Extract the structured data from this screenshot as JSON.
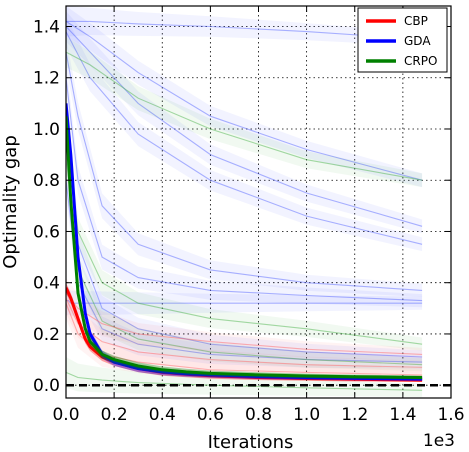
{
  "chart_data": {
    "type": "line",
    "xlabel": "Iterations",
    "ylabel": "Optimality gap",
    "x_multiplier_label": "1e3",
    "xlim": [
      0,
      1.6
    ],
    "ylim": [
      -0.05,
      1.48
    ],
    "x_ticks": [
      0.0,
      0.2,
      0.4,
      0.6,
      0.8,
      1.0,
      1.2,
      1.4,
      1.6
    ],
    "x_tick_labels": [
      "0.0",
      "0.2",
      "0.4",
      "0.6",
      "0.8",
      "1.0",
      "1.2",
      "1.4",
      "1.6"
    ],
    "y_ticks": [
      0.0,
      0.2,
      0.4,
      0.6,
      0.8,
      1.0,
      1.2,
      1.4
    ],
    "y_tick_labels": [
      "0.0",
      "0.2",
      "0.4",
      "0.6",
      "0.8",
      "1.0",
      "1.2",
      "1.4"
    ],
    "grid": true,
    "legend_position": "top-right",
    "reference_line": {
      "y": 0.0,
      "style": "dashed",
      "color": "#000000"
    },
    "colors": {
      "CBP": "#ff0000",
      "GDA": "#0000ff",
      "CRPO": "#008000"
    },
    "series": [
      {
        "name": "CBP",
        "x": [
          0,
          0.02,
          0.05,
          0.08,
          0.1,
          0.15,
          0.2,
          0.3,
          0.4,
          0.5,
          0.6,
          0.8,
          1.0,
          1.2,
          1.48
        ],
        "values": [
          0.38,
          0.34,
          0.26,
          0.18,
          0.15,
          0.11,
          0.09,
          0.065,
          0.05,
          0.043,
          0.037,
          0.03,
          0.026,
          0.023,
          0.02
        ]
      },
      {
        "name": "GDA",
        "x": [
          0,
          0.02,
          0.05,
          0.08,
          0.1,
          0.15,
          0.2,
          0.3,
          0.4,
          0.5,
          0.6,
          0.8,
          1.0,
          1.2,
          1.48
        ],
        "values": [
          1.1,
          0.9,
          0.5,
          0.28,
          0.2,
          0.12,
          0.09,
          0.065,
          0.052,
          0.045,
          0.04,
          0.034,
          0.03,
          0.027,
          0.024
        ]
      },
      {
        "name": "CRPO",
        "x": [
          0,
          0.02,
          0.05,
          0.08,
          0.1,
          0.15,
          0.2,
          0.3,
          0.4,
          0.5,
          0.6,
          0.8,
          1.0,
          1.2,
          1.48
        ],
        "values": [
          1.05,
          0.72,
          0.36,
          0.22,
          0.17,
          0.12,
          0.1,
          0.075,
          0.06,
          0.052,
          0.046,
          0.04,
          0.036,
          0.033,
          0.03
        ]
      }
    ],
    "background_runs": [
      {
        "color": "blue",
        "x": [
          0,
          0.1,
          0.3,
          0.6,
          1.0,
          1.48
        ],
        "values": [
          1.42,
          1.42,
          1.41,
          1.4,
          1.38,
          1.35
        ]
      },
      {
        "color": "blue",
        "x": [
          0,
          0.1,
          0.3,
          0.6,
          1.0,
          1.48
        ],
        "values": [
          1.42,
          1.36,
          1.22,
          1.05,
          0.92,
          0.8
        ]
      },
      {
        "color": "blue",
        "x": [
          0,
          0.1,
          0.3,
          0.6,
          1.0,
          1.48
        ],
        "values": [
          1.4,
          1.3,
          1.1,
          0.9,
          0.75,
          0.62
        ]
      },
      {
        "color": "blue",
        "x": [
          0,
          0.1,
          0.3,
          0.6,
          1.0,
          1.48
        ],
        "values": [
          1.38,
          1.2,
          0.98,
          0.8,
          0.66,
          0.55
        ]
      },
      {
        "color": "blue",
        "x": [
          0,
          0.05,
          0.15,
          0.3,
          0.6,
          1.0,
          1.48
        ],
        "values": [
          1.3,
          1.05,
          0.7,
          0.55,
          0.45,
          0.4,
          0.37
        ]
      },
      {
        "color": "blue",
        "x": [
          0,
          0.05,
          0.15,
          0.3,
          0.6,
          1.0,
          1.48
        ],
        "values": [
          1.2,
          0.8,
          0.5,
          0.42,
          0.37,
          0.35,
          0.33
        ]
      },
      {
        "color": "blue",
        "x": [
          0,
          0.01,
          0.02,
          0.3,
          0.6,
          1.0,
          1.48
        ],
        "values": [
          0.33,
          0.33,
          0.32,
          0.32,
          0.32,
          0.32,
          0.32
        ]
      },
      {
        "color": "blue",
        "x": [
          0,
          0.05,
          0.15,
          0.3,
          0.6,
          1.0,
          1.48
        ],
        "values": [
          1.0,
          0.55,
          0.3,
          0.22,
          0.16,
          0.13,
          0.11
        ]
      },
      {
        "color": "blue",
        "x": [
          0,
          0.05,
          0.15,
          0.3,
          0.6,
          1.0,
          1.48
        ],
        "values": [
          0.8,
          0.4,
          0.22,
          0.16,
          0.12,
          0.1,
          0.09
        ]
      },
      {
        "color": "green",
        "x": [
          0,
          0.1,
          0.3,
          0.6,
          1.0,
          1.48
        ],
        "values": [
          1.3,
          1.25,
          1.12,
          1.0,
          0.88,
          0.8
        ]
      },
      {
        "color": "green",
        "x": [
          0,
          0.05,
          0.15,
          0.3,
          0.6,
          1.0,
          1.48
        ],
        "values": [
          1.0,
          0.6,
          0.4,
          0.32,
          0.26,
          0.22,
          0.16
        ]
      },
      {
        "color": "green",
        "x": [
          0,
          0.05,
          0.15,
          0.3,
          0.6,
          1.0,
          1.48
        ],
        "values": [
          0.9,
          0.45,
          0.25,
          0.18,
          0.13,
          0.1,
          0.08
        ]
      },
      {
        "color": "green",
        "x": [
          0,
          0.05,
          0.15,
          0.3,
          0.6,
          1.0,
          1.48
        ],
        "values": [
          0.05,
          0.03,
          0.02,
          0.01,
          0.0,
          -0.01,
          -0.02
        ]
      },
      {
        "color": "red",
        "x": [
          0,
          0.05,
          0.15,
          0.3,
          0.6,
          1.0,
          1.48
        ],
        "values": [
          0.36,
          0.3,
          0.24,
          0.2,
          0.17,
          0.14,
          0.12
        ]
      },
      {
        "color": "red",
        "x": [
          0,
          0.05,
          0.15,
          0.3,
          0.6,
          1.0,
          1.48
        ],
        "values": [
          0.34,
          0.24,
          0.17,
          0.13,
          0.1,
          0.08,
          0.07
        ]
      },
      {
        "color": "red",
        "x": [
          0,
          0.05,
          0.15,
          0.3,
          0.6,
          1.0,
          1.48
        ],
        "values": [
          0.32,
          0.2,
          0.12,
          0.09,
          0.06,
          0.05,
          0.04
        ]
      }
    ]
  }
}
